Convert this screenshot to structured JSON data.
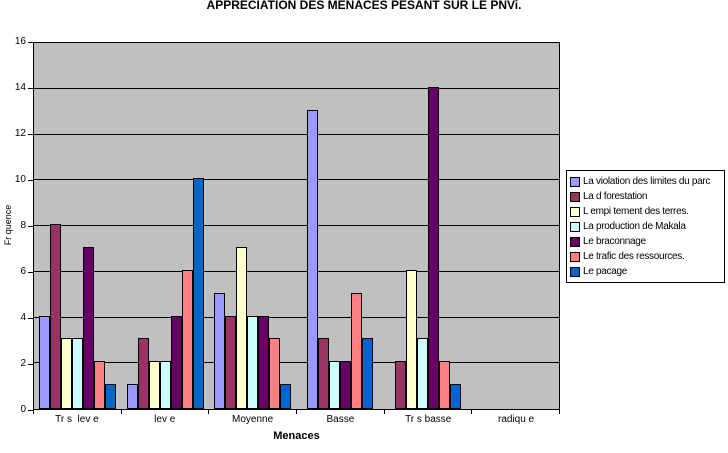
{
  "chart_data": {
    "type": "bar",
    "title": "APPRECIATION DES MENACES PESANT SUR LE PNVi.",
    "xlabel": "Menaces",
    "ylabel": "Fr quence",
    "ylim": [
      0,
      16
    ],
    "yticks": [
      0,
      2,
      4,
      6,
      8,
      10,
      12,
      14,
      16
    ],
    "grid": true,
    "plot_background": "#C0C0C0",
    "legend_position": "right",
    "categories": [
      "Tr s  lev e",
      "lev e",
      "Moyenne",
      "Basse",
      "Tr s basse",
      "radiqu e"
    ],
    "series": [
      {
        "name": "La violation des limites du parc",
        "color": "#9999FF",
        "values": [
          4,
          1,
          5,
          13,
          0,
          0
        ]
      },
      {
        "name": "La d  forestation",
        "color": "#993366",
        "values": [
          8,
          3,
          4,
          3,
          2,
          0
        ]
      },
      {
        "name": "L empi  tement des terres.",
        "color": "#FFFFCC",
        "values": [
          3,
          2,
          7,
          0,
          6,
          0
        ]
      },
      {
        "name": "La production de Makala",
        "color": "#CCFFFF",
        "values": [
          3,
          2,
          4,
          2,
          3,
          0
        ]
      },
      {
        "name": "Le braconnage",
        "color": "#660066",
        "values": [
          7,
          4,
          4,
          2,
          14,
          0
        ]
      },
      {
        "name": "Le trafic des ressources.",
        "color": "#FF8080",
        "values": [
          2,
          6,
          3,
          5,
          2,
          0
        ]
      },
      {
        "name": "Le pacage",
        "color": "#0066CC",
        "values": [
          1,
          10,
          1,
          3,
          1,
          0
        ]
      }
    ]
  }
}
